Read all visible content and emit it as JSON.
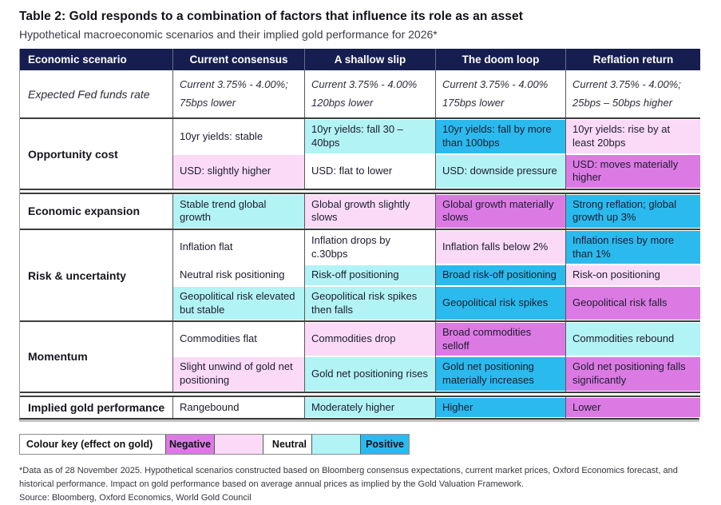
{
  "title": "Table 2: Gold responds to a combination of factors that influence its role as an asset",
  "subtitle": "Hypothetical macroeconomic scenarios and their implied gold performance for 2026*",
  "colors": {
    "header_bg": "#161e4f",
    "tones": {
      "neutral": "#ffffff",
      "negative_light": "#fbdaf8",
      "negative_strong": "#dc7ae4",
      "positive_light": "#b2f3f6",
      "positive_strong": "#2bbaee"
    }
  },
  "table": {
    "columns": [
      "Economic scenario",
      "Current consensus",
      "A shallow slip",
      "The doom loop",
      "Reflation return"
    ],
    "rows": [
      {
        "label": "Expected Fed funds rate",
        "label_italic": true,
        "divider_before": "none",
        "subrows": [
          {
            "cells": [
              {
                "lines": [
                  "Current 3.75% - 4.00%;",
                  "75bps lower"
                ],
                "tone": "neutral",
                "italic": true
              },
              {
                "lines": [
                  "Current 3.75% - 4.00%",
                  "120bps lower"
                ],
                "tone": "neutral",
                "italic": true
              },
              {
                "lines": [
                  "Current 3.75% - 4.00%",
                  "175bps lower"
                ],
                "tone": "neutral",
                "italic": true
              },
              {
                "lines": [
                  "Current 3.75% - 4.00%;",
                  "25bps – 50bps higher"
                ],
                "tone": "neutral",
                "italic": true
              }
            ]
          }
        ]
      },
      {
        "label": "Opportunity cost",
        "divider_before": "single",
        "subrows": [
          {
            "cells": [
              {
                "lines": [
                  "10yr yields: stable"
                ],
                "tone": "neutral"
              },
              {
                "lines": [
                  "10yr yields: fall 30 – 40bps"
                ],
                "tone": "positive_light"
              },
              {
                "lines": [
                  "10yr yields: fall by more than 100bps"
                ],
                "tone": "positive_strong"
              },
              {
                "lines": [
                  "10yr yields: rise by at least 20bps"
                ],
                "tone": "negative_light"
              }
            ]
          },
          {
            "cells": [
              {
                "lines": [
                  "USD: slightly higher"
                ],
                "tone": "negative_light"
              },
              {
                "lines": [
                  "USD: flat to lower"
                ],
                "tone": "neutral"
              },
              {
                "lines": [
                  "USD: downside pressure"
                ],
                "tone": "positive_light"
              },
              {
                "lines": [
                  "USD: moves materially higher"
                ],
                "tone": "negative_strong"
              }
            ]
          }
        ]
      },
      {
        "label": "Economic expansion",
        "divider_before": "double",
        "subrows": [
          {
            "cells": [
              {
                "lines": [
                  "Stable trend global growth"
                ],
                "tone": "positive_light"
              },
              {
                "lines": [
                  "Global growth slightly slows"
                ],
                "tone": "negative_light"
              },
              {
                "lines": [
                  "Global growth materially slows"
                ],
                "tone": "negative_strong"
              },
              {
                "lines": [
                  "Strong reflation; global growth up 3%"
                ],
                "tone": "positive_strong"
              }
            ]
          }
        ]
      },
      {
        "label": "Risk & uncertainty",
        "divider_before": "single",
        "subrows": [
          {
            "cells": [
              {
                "lines": [
                  "Inflation flat"
                ],
                "tone": "neutral"
              },
              {
                "lines": [
                  "Inflation drops by c.30bps"
                ],
                "tone": "neutral"
              },
              {
                "lines": [
                  "Inflation falls below 2%"
                ],
                "tone": "negative_light"
              },
              {
                "lines": [
                  "Inflation rises by more than 1%"
                ],
                "tone": "positive_strong"
              }
            ]
          },
          {
            "cells": [
              {
                "lines": [
                  "Neutral risk positioning"
                ],
                "tone": "neutral"
              },
              {
                "lines": [
                  "Risk-off positioning"
                ],
                "tone": "positive_light"
              },
              {
                "lines": [
                  "Broad risk-off positioning"
                ],
                "tone": "positive_strong"
              },
              {
                "lines": [
                  "Risk-on positioning"
                ],
                "tone": "negative_light"
              }
            ]
          },
          {
            "cells": [
              {
                "lines": [
                  "Geopolitical risk elevated but stable"
                ],
                "tone": "positive_light"
              },
              {
                "lines": [
                  "Geopolitical risk spikes then falls"
                ],
                "tone": "positive_light"
              },
              {
                "lines": [
                  "Geopolitical risk spikes"
                ],
                "tone": "positive_strong"
              },
              {
                "lines": [
                  "Geopolitical risk falls"
                ],
                "tone": "negative_strong"
              }
            ]
          }
        ]
      },
      {
        "label": "Momentum",
        "divider_before": "single",
        "subrows": [
          {
            "cells": [
              {
                "lines": [
                  "Commodities flat"
                ],
                "tone": "neutral"
              },
              {
                "lines": [
                  "Commodities drop"
                ],
                "tone": "negative_light"
              },
              {
                "lines": [
                  "Broad commodities selloff"
                ],
                "tone": "negative_strong"
              },
              {
                "lines": [
                  "Commodities rebound"
                ],
                "tone": "positive_light"
              }
            ]
          },
          {
            "cells": [
              {
                "lines": [
                  "Slight unwind of gold net positioning"
                ],
                "tone": "negative_light"
              },
              {
                "lines": [
                  "Gold net positioning rises"
                ],
                "tone": "positive_light"
              },
              {
                "lines": [
                  "Gold net positioning materially increases"
                ],
                "tone": "positive_strong"
              },
              {
                "lines": [
                  "Gold net positioning falls significantly"
                ],
                "tone": "negative_strong"
              }
            ]
          }
        ]
      },
      {
        "label": "Implied gold performance",
        "divider_before": "double",
        "subrows": [
          {
            "cells": [
              {
                "lines": [
                  "Rangebound"
                ],
                "tone": "neutral"
              },
              {
                "lines": [
                  "Moderately higher"
                ],
                "tone": "positive_light"
              },
              {
                "lines": [
                  "Higher"
                ],
                "tone": "positive_strong"
              },
              {
                "lines": [
                  "Lower"
                ],
                "tone": "negative_strong"
              }
            ]
          }
        ]
      }
    ]
  },
  "legend": {
    "label": "Colour key (effect on gold)",
    "cells": [
      {
        "label": "Negative",
        "tone": "negative_strong",
        "align": "center"
      },
      {
        "label": "",
        "tone": "negative_light",
        "align": "center"
      },
      {
        "label": "Neutral",
        "tone": "neutral",
        "align": "right"
      },
      {
        "label": "",
        "tone": "positive_light",
        "align": "center"
      },
      {
        "label": "Positive",
        "tone": "positive_strong",
        "align": "right"
      }
    ]
  },
  "footnotes": [
    "*Data as of 28 November 2025. Hypothetical scenarios constructed based on Bloomberg consensus expectations, current market prices, Oxford Economics forecast, and historical performance. Impact on gold performance based on average annual prices as implied by the Gold Valuation Framework.",
    "Source: Bloomberg, Oxford Economics, World Gold Council"
  ]
}
